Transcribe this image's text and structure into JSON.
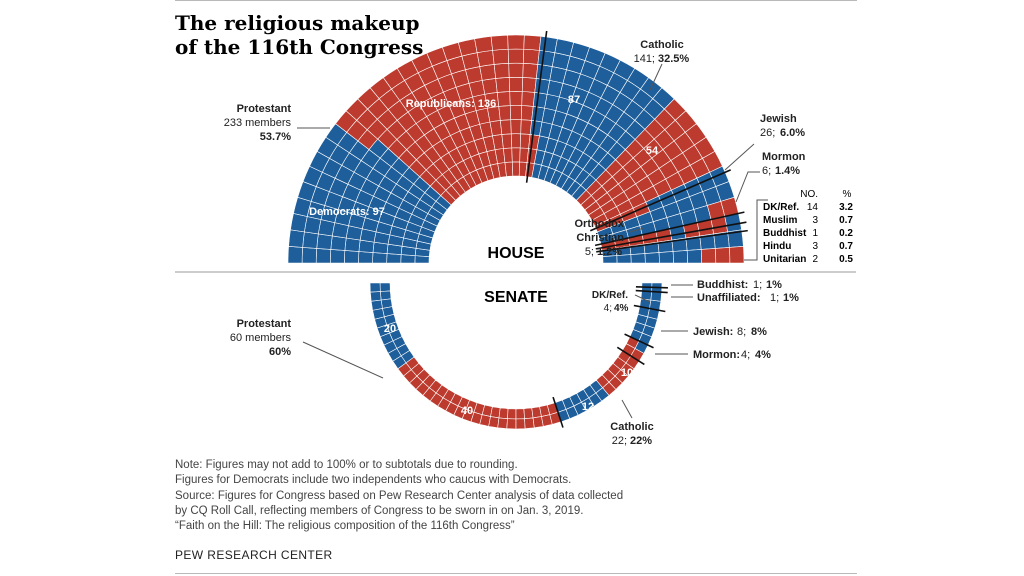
{
  "title_lines": [
    "The religious makeup",
    "of the 116th Congress"
  ],
  "colors": {
    "democrat": "#1d5e9b",
    "republican": "#bd3a2e",
    "grid": "#ffffff",
    "leader": "#555555",
    "divider": "#111111"
  },
  "chart_data": [
    {
      "type": "semicircle-seat-chart",
      "chamber": "HOUSE",
      "rows": 10,
      "party_labels": [
        {
          "party": "Democrats",
          "religion": "Protestant",
          "seats": 97,
          "text": "Democrats: 97"
        },
        {
          "party": "Republicans",
          "religion": "Protestant",
          "seats": 136,
          "text": "Republicans: 136"
        },
        {
          "party": "Democrats",
          "religion": "Catholic",
          "seats": 87,
          "text": "87"
        },
        {
          "party": "Republicans",
          "religion": "Catholic",
          "seats": 54,
          "text": "54"
        }
      ],
      "segments": [
        {
          "religion": "Protestant",
          "party": "Democrats",
          "seats": 97
        },
        {
          "religion": "Protestant",
          "party": "Republicans",
          "seats": 136
        },
        {
          "religion": "Catholic",
          "party": "Democrats",
          "seats": 87
        },
        {
          "religion": "Catholic",
          "party": "Republicans",
          "seats": 54
        },
        {
          "religion": "Jewish",
          "party": "Democrats",
          "seats": 24
        },
        {
          "religion": "Jewish",
          "party": "Republicans",
          "seats": 2
        },
        {
          "religion": "Mormon",
          "party": "Republicans",
          "seats": 5
        },
        {
          "religion": "Mormon",
          "party": "Democrats",
          "seats": 1
        },
        {
          "religion": "Orthodox Christian",
          "party": "Republicans",
          "seats": 3
        },
        {
          "religion": "Orthodox Christian",
          "party": "Democrats",
          "seats": 2
        },
        {
          "religion": "Other",
          "party": "Democrats",
          "seats": 16
        },
        {
          "religion": "Other",
          "party": "Republicans",
          "seats": 7
        }
      ],
      "groups": [
        {
          "name": "Protestant",
          "members": 233,
          "pct": 53.7,
          "line1": "Protestant",
          "line2": "233 members",
          "line3": "53.7%"
        },
        {
          "name": "Catholic",
          "members": 141,
          "pct": 32.5,
          "line1": "Catholic",
          "line2": "141;",
          "line3": "32.5%"
        },
        {
          "name": "Jewish",
          "members": 26,
          "pct": 6.0,
          "line1": "Jewish",
          "line2": "26;",
          "line3": "6.0%"
        },
        {
          "name": "Mormon",
          "members": 6,
          "pct": 1.4,
          "line1": "Mormon",
          "line2": "6;",
          "line3": "1.4%"
        },
        {
          "name": "Orthodox Christian",
          "members": 5,
          "pct": 1.2,
          "line1": "Orthodox",
          "line1b": "Christian",
          "line2": "5;",
          "line3": "1.2%"
        }
      ],
      "other_table": {
        "headers": [
          "NO.",
          "%"
        ],
        "rows": [
          {
            "name": "DK/Ref.",
            "no": "14",
            "pct": "3.2"
          },
          {
            "name": "Muslim",
            "no": "3",
            "pct": "0.7"
          },
          {
            "name": "Buddhist",
            "no": "1",
            "pct": "0.2"
          },
          {
            "name": "Hindu",
            "no": "3",
            "pct": "0.7"
          },
          {
            "name": "Unitarian",
            "no": "2",
            "pct": "0.5"
          }
        ]
      }
    },
    {
      "type": "semicircle-seat-chart",
      "chamber": "SENATE",
      "rows": 2,
      "party_labels": [
        {
          "party": "Democrats",
          "religion": "Protestant",
          "seats": 20,
          "text": "20"
        },
        {
          "party": "Republicans",
          "religion": "Protestant",
          "seats": 40,
          "text": "40"
        },
        {
          "party": "Democrats",
          "religion": "Catholic",
          "seats": 12,
          "text": "12"
        },
        {
          "party": "Republicans",
          "religion": "Catholic",
          "seats": 10,
          "text": "10"
        }
      ],
      "segments": [
        {
          "religion": "Protestant",
          "party": "Democrats",
          "seats": 20
        },
        {
          "religion": "Protestant",
          "party": "Republicans",
          "seats": 40
        },
        {
          "religion": "Catholic",
          "party": "Democrats",
          "seats": 12
        },
        {
          "religion": "Catholic",
          "party": "Republicans",
          "seats": 10
        },
        {
          "religion": "Mormon",
          "party": "Republicans",
          "seats": 3
        },
        {
          "religion": "Mormon",
          "party": "Democrats",
          "seats": 1
        },
        {
          "religion": "Jewish",
          "party": "Democrats",
          "seats": 8
        },
        {
          "religion": "DK/Ref.",
          "party": "Democrats",
          "seats": 4
        },
        {
          "religion": "Unaffiliated",
          "party": "Democrats",
          "seats": 1
        },
        {
          "religion": "Buddhist",
          "party": "Democrats",
          "seats": 1
        }
      ],
      "groups": [
        {
          "name": "Protestant",
          "members": 60,
          "pct": 60,
          "line1": "Protestant",
          "line2": "60 members",
          "line3": "60%"
        },
        {
          "name": "Catholic",
          "members": 22,
          "pct": 22,
          "line1": "Catholic",
          "line2": "22;",
          "line3": "22%"
        },
        {
          "name": "Mormon",
          "members": 4,
          "pct": 4,
          "line1": "Mormon:",
          "line2": "4;",
          "line3": "4%"
        },
        {
          "name": "Jewish",
          "members": 8,
          "pct": 8,
          "line1": "Jewish:",
          "line2": "8;",
          "line3": "8%"
        },
        {
          "name": "DK/Ref.",
          "members": 4,
          "pct": 4,
          "line1": "DK/Ref.",
          "line2": "4;",
          "line3": "4%"
        },
        {
          "name": "Unaffiliated",
          "members": 1,
          "pct": 1,
          "line1": "Unaffiliated:",
          "line2": "1;",
          "line3": "1%"
        },
        {
          "name": "Buddhist",
          "members": 1,
          "pct": 1,
          "line1": "Buddhist:",
          "line2": "1;",
          "line3": "1%"
        }
      ]
    }
  ],
  "notes": [
    "Note: Figures may not add to 100% or to subtotals due to rounding.",
    "Figures for Democrats include two independents who caucus with Democrats.",
    "Source: Figures for Congress based on Pew Research Center analysis of data collected",
    "by CQ Roll Call, reflecting members of Congress to be sworn in on Jan. 3, 2019.",
    "“Faith on the Hill: The religious composition of the 116th Congress”"
  ],
  "source": "PEW RESEARCH CENTER"
}
